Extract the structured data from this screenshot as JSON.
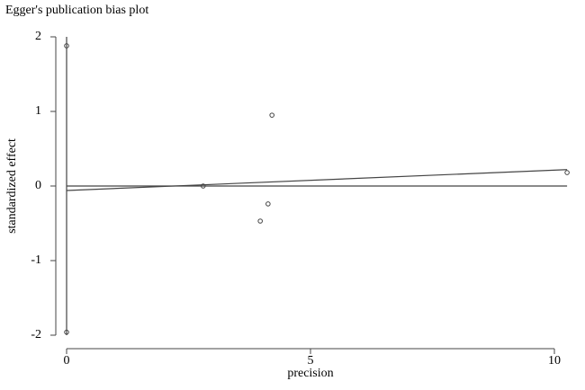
{
  "chart_data": {
    "type": "scatter",
    "title": "Egger's publication bias plot",
    "xlabel": "precision",
    "ylabel": "standardized effect",
    "x": [
      0,
      0,
      2.8,
      4.21,
      4.13,
      3.97,
      10.26
    ],
    "values": [
      1.88,
      -1.96,
      0.0,
      0.95,
      -0.24,
      -0.47,
      0.18
    ],
    "xlim": [
      0,
      10
    ],
    "ylim": [
      -2,
      2
    ],
    "xticks": [
      0,
      5,
      10
    ],
    "yticks": [
      -2,
      -1,
      0,
      1,
      2
    ],
    "regression_line": {
      "x": [
        0,
        10.26
      ],
      "values": [
        -0.06,
        0.22
      ]
    },
    "reference_line": {
      "x": [
        0,
        10.26
      ],
      "values": [
        0,
        0
      ]
    },
    "intercept_ci": {
      "x": [
        0,
        0
      ],
      "values": [
        -2,
        2
      ]
    },
    "color": "#444444"
  }
}
